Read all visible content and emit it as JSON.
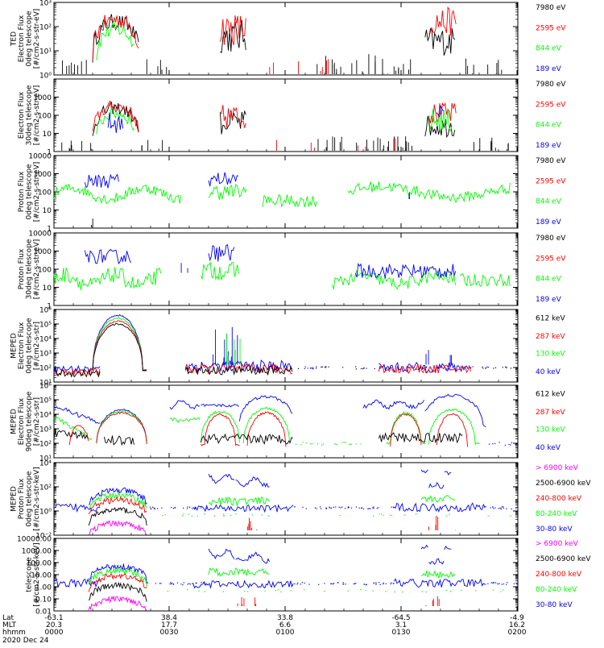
{
  "colors": {
    "black": "#000000",
    "red": "#ff0000",
    "green": "#00ff00",
    "blue": "#0000ff",
    "magenta": "#ff00ff"
  },
  "x_axis": {
    "row_labels": [
      "Lat",
      "MLT",
      "hhmm"
    ],
    "date_label": "2020 Dec 24",
    "ticks": [
      {
        "lat": "-63.1",
        "mlt": "20.3",
        "hhmm": "0000"
      },
      {
        "lat": "38.4",
        "mlt": "17.7",
        "hhmm": "0030"
      },
      {
        "lat": "33.8",
        "mlt": "6.6",
        "hhmm": "0100"
      },
      {
        "lat": "-64.5",
        "mlt": "3.1",
        "hhmm": "0130"
      },
      {
        "lat": "-4.9",
        "mlt": "16.2",
        "hhmm": "0200"
      }
    ]
  },
  "chart_data": [
    {
      "type": "line",
      "ylabel_lines": [
        "TED",
        "Electron Flux",
        "0deg telescope",
        "[#/cm2-s-str-eV]"
      ],
      "yscale": "log",
      "ylim": [
        1,
        1000
      ],
      "tick_style": "exp",
      "ytick_values": [
        1,
        10,
        100,
        1000
      ],
      "series": [
        {
          "name": "7980 eV",
          "color": "#000000"
        },
        {
          "name": "2595 eV",
          "color": "#ff0000"
        },
        {
          "name": "844 eV",
          "color": "#00ff00"
        },
        {
          "name": "189 eV",
          "color": "#0000ff"
        }
      ]
    },
    {
      "type": "line",
      "ylabel_lines": [
        "Electron Flux",
        "30deg telescope",
        "[#/cm2-s-str-eV]"
      ],
      "yscale": "log",
      "ylim": [
        1,
        10000
      ],
      "tick_style": "plain",
      "ytick_values": [
        1,
        10,
        100,
        1000
      ],
      "series": [
        {
          "name": "7980 eV",
          "color": "#000000"
        },
        {
          "name": "2595 eV",
          "color": "#ff0000"
        },
        {
          "name": "844 eV",
          "color": "#00ff00"
        },
        {
          "name": "189 eV",
          "color": "#0000ff"
        }
      ]
    },
    {
      "type": "line",
      "ylabel_lines": [
        "Proton Flux",
        "0deg telescope",
        "[#/cm2-s-str-eV]"
      ],
      "yscale": "log",
      "ylim": [
        1,
        10000
      ],
      "tick_style": "plain",
      "ytick_values": [
        1,
        10,
        100,
        1000,
        10000
      ],
      "series": [
        {
          "name": "7980 eV",
          "color": "#000000"
        },
        {
          "name": "2595 eV",
          "color": "#ff0000"
        },
        {
          "name": "844 eV",
          "color": "#00ff00"
        },
        {
          "name": "189 eV",
          "color": "#0000ff"
        }
      ]
    },
    {
      "type": "line",
      "ylabel_lines": [
        "Proton Flux",
        "30deg telescope",
        "[#/cm2-s-str-eV]"
      ],
      "yscale": "log",
      "ylim": [
        1,
        10000
      ],
      "tick_style": "plain",
      "ytick_values": [
        1,
        10,
        100,
        1000,
        10000
      ],
      "series": [
        {
          "name": "7980 eV",
          "color": "#000000"
        },
        {
          "name": "2595 eV",
          "color": "#ff0000"
        },
        {
          "name": "844 eV",
          "color": "#00ff00"
        },
        {
          "name": "189 eV",
          "color": "#0000ff"
        }
      ]
    },
    {
      "type": "line",
      "ylabel_lines": [
        "MEPED",
        "Electron Flux",
        "0deg telescope",
        "[#/cm2-s-str]"
      ],
      "yscale": "log",
      "ylim": [
        10,
        1000000
      ],
      "tick_style": "exp",
      "ytick_values": [
        10,
        100,
        1000,
        10000,
        100000,
        1000000
      ],
      "series": [
        {
          "name": "612 keV",
          "color": "#000000"
        },
        {
          "name": "287 keV",
          "color": "#ff0000"
        },
        {
          "name": "130 keV",
          "color": "#00ff00"
        },
        {
          "name": "40 keV",
          "color": "#0000ff"
        }
      ]
    },
    {
      "type": "line",
      "ylabel_lines": [
        "MEPED",
        "Electron Flux",
        "90deg telescope",
        "[#/cm2-s-str]"
      ],
      "yscale": "log",
      "ylim": [
        10,
        1000000
      ],
      "tick_style": "exp",
      "ytick_values": [
        10,
        100,
        1000,
        10000,
        100000,
        1000000
      ],
      "series": [
        {
          "name": "612 keV",
          "color": "#000000"
        },
        {
          "name": "287 keV",
          "color": "#ff0000"
        },
        {
          "name": "130 keV",
          "color": "#00ff00"
        },
        {
          "name": "40 keV",
          "color": "#0000ff"
        }
      ]
    },
    {
      "type": "line",
      "ylabel_lines": [
        "MEPED",
        "Proton Flux",
        "0deg telescope",
        "[#/cm2-s-str-keV]"
      ],
      "yscale": "log",
      "ylim": [
        0.01,
        10000
      ],
      "tick_style": "exp",
      "ytick_values": [
        0.01,
        1,
        100,
        10000
      ],
      "series": [
        {
          "name": "> 6900 keV",
          "color": "#ff00ff"
        },
        {
          "name": "2500-6900 keV",
          "color": "#000000"
        },
        {
          "name": "240-800 keV",
          "color": "#ff0000"
        },
        {
          "name": "80-240 keV",
          "color": "#00ff00"
        },
        {
          "name": "30-80 keV",
          "color": "#0000ff"
        }
      ]
    },
    {
      "type": "line",
      "ylabel_lines": [
        "telescope",
        "[#/cm2-s-str-keV]"
      ],
      "yscale": "log",
      "ylim": [
        0.01,
        10000
      ],
      "tick_style": "decimal",
      "ytick_values": [
        0.01,
        0.1,
        1,
        10,
        100,
        1000,
        10000
      ],
      "ytick_labels": [
        "0.01",
        "0.10",
        "1.00",
        "10.00",
        "100.00",
        "1000.00",
        "10000.00"
      ],
      "series": [
        {
          "name": "> 6900 keV",
          "color": "#ff00ff"
        },
        {
          "name": "2500-6900 keV",
          "color": "#000000"
        },
        {
          "name": "240-800 keV",
          "color": "#ff0000"
        },
        {
          "name": "80-240 keV",
          "color": "#00ff00"
        },
        {
          "name": "30-80 keV",
          "color": "#0000ff"
        }
      ]
    }
  ]
}
